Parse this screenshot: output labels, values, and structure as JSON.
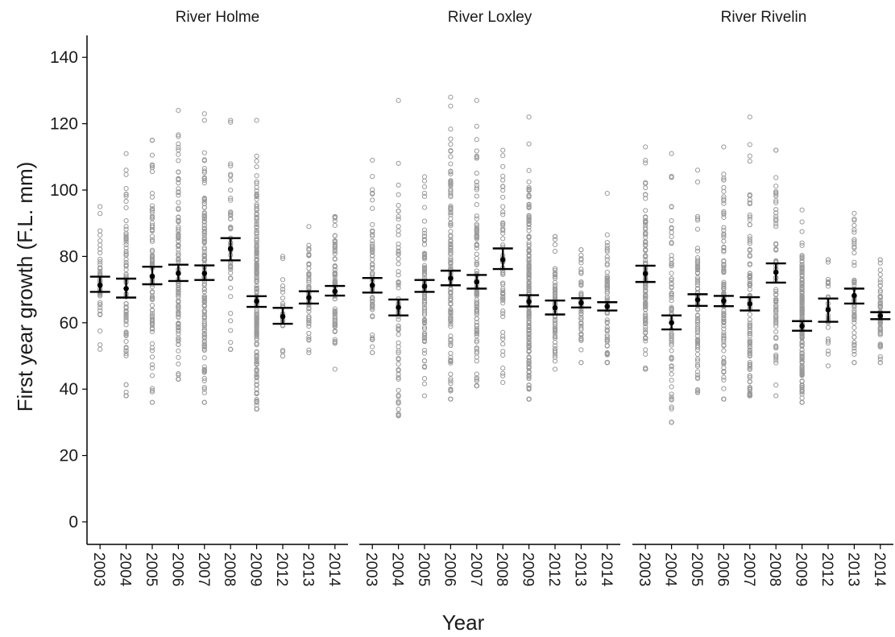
{
  "chart_data": {
    "type": "scatter",
    "xlabel": "Year",
    "ylabel": "First year growth (F.L. mm)",
    "ylim": [
      -6,
      146
    ],
    "yticks": [
      0,
      20,
      40,
      60,
      80,
      100,
      120,
      140
    ],
    "grid": false,
    "categories": [
      "2003",
      "2004",
      "2005",
      "2006",
      "2007",
      "2008",
      "2009",
      "2012",
      "2013",
      "2014"
    ],
    "facets": [
      {
        "title": "River Holme",
        "summary": [
          {
            "year": "2003",
            "mean": 71.3,
            "lower": 69.3,
            "upper": 73.9
          },
          {
            "year": "2004",
            "mean": 70.3,
            "lower": 67.6,
            "upper": 73.3
          },
          {
            "year": "2005",
            "mean": 74.0,
            "lower": 71.6,
            "upper": 76.9
          },
          {
            "year": "2006",
            "mean": 74.9,
            "lower": 72.6,
            "upper": 77.5
          },
          {
            "year": "2007",
            "mean": 74.9,
            "lower": 72.9,
            "upper": 77.3
          },
          {
            "year": "2008",
            "mean": 82.3,
            "lower": 78.8,
            "upper": 85.5
          },
          {
            "year": "2009",
            "mean": 66.5,
            "lower": 64.8,
            "upper": 68.0
          },
          {
            "year": "2012",
            "mean": 61.9,
            "lower": 59.7,
            "upper": 64.5
          },
          {
            "year": "2013",
            "mean": 67.6,
            "lower": 65.8,
            "upper": 69.5
          },
          {
            "year": "2014",
            "mean": 69.5,
            "lower": 68.2,
            "upper": 71.1
          }
        ],
        "ranges": [
          {
            "year": "2003",
            "min": 52,
            "max": 95,
            "n": 45
          },
          {
            "year": "2004",
            "min": 38,
            "max": 111,
            "n": 80
          },
          {
            "year": "2005",
            "min": 36,
            "max": 115,
            "n": 90
          },
          {
            "year": "2006",
            "min": 43,
            "max": 124,
            "n": 120
          },
          {
            "year": "2007",
            "min": 36,
            "max": 123,
            "n": 130
          },
          {
            "year": "2008",
            "min": 52,
            "max": 121,
            "n": 50
          },
          {
            "year": "2009",
            "min": 34,
            "max": 121,
            "n": 200
          },
          {
            "year": "2012",
            "min": 50,
            "max": 80,
            "n": 25
          },
          {
            "year": "2013",
            "min": 51,
            "max": 89,
            "n": 55
          },
          {
            "year": "2014",
            "min": 46,
            "max": 92,
            "n": 80
          }
        ]
      },
      {
        "title": "River Loxley",
        "summary": [
          {
            "year": "2003",
            "mean": 71.3,
            "lower": 69.1,
            "upper": 73.5
          },
          {
            "year": "2004",
            "mean": 64.6,
            "lower": 62.2,
            "upper": 67.0
          },
          {
            "year": "2005",
            "mean": 71.0,
            "lower": 69.3,
            "upper": 72.9
          },
          {
            "year": "2006",
            "mean": 73.4,
            "lower": 71.3,
            "upper": 75.7
          },
          {
            "year": "2007",
            "mean": 72.3,
            "lower": 70.3,
            "upper": 74.4
          },
          {
            "year": "2008",
            "mean": 79.0,
            "lower": 76.2,
            "upper": 82.4
          },
          {
            "year": "2009",
            "mean": 66.4,
            "lower": 64.9,
            "upper": 68.3
          },
          {
            "year": "2012",
            "mean": 64.5,
            "lower": 62.5,
            "upper": 66.7
          },
          {
            "year": "2013",
            "mean": 66.0,
            "lower": 64.6,
            "upper": 67.4
          },
          {
            "year": "2014",
            "mean": 64.9,
            "lower": 63.7,
            "upper": 66.2
          }
        ],
        "ranges": [
          {
            "year": "2003",
            "min": 51,
            "max": 109,
            "n": 60
          },
          {
            "year": "2004",
            "min": 32,
            "max": 127,
            "n": 70
          },
          {
            "year": "2005",
            "min": 38,
            "max": 104,
            "n": 90
          },
          {
            "year": "2006",
            "min": 37,
            "max": 128,
            "n": 130
          },
          {
            "year": "2007",
            "min": 41,
            "max": 127,
            "n": 110
          },
          {
            "year": "2008",
            "min": 42,
            "max": 112,
            "n": 55
          },
          {
            "year": "2009",
            "min": 37,
            "max": 122,
            "n": 200
          },
          {
            "year": "2012",
            "min": 46,
            "max": 86,
            "n": 70
          },
          {
            "year": "2013",
            "min": 48,
            "max": 82,
            "n": 50
          },
          {
            "year": "2014",
            "min": 48,
            "max": 99,
            "n": 70
          }
        ]
      },
      {
        "title": "River Rivelin",
        "summary": [
          {
            "year": "2003",
            "mean": 74.8,
            "lower": 72.3,
            "upper": 77.2
          },
          {
            "year": "2004",
            "mean": 60.0,
            "lower": 58.0,
            "upper": 62.2
          },
          {
            "year": "2005",
            "mean": 66.9,
            "lower": 65.1,
            "upper": 68.6
          },
          {
            "year": "2006",
            "mean": 66.6,
            "lower": 65.0,
            "upper": 68.1
          },
          {
            "year": "2007",
            "mean": 65.7,
            "lower": 63.7,
            "upper": 67.7
          },
          {
            "year": "2008",
            "mean": 75.2,
            "lower": 72.1,
            "upper": 77.9
          },
          {
            "year": "2009",
            "mean": 59.0,
            "lower": 57.6,
            "upper": 60.5
          },
          {
            "year": "2012",
            "mean": 63.9,
            "lower": 60.3,
            "upper": 67.3
          },
          {
            "year": "2013",
            "mean": 68.2,
            "lower": 65.8,
            "upper": 70.3
          },
          {
            "year": "2014",
            "mean": 62.1,
            "lower": 61.1,
            "upper": 63.2
          }
        ],
        "ranges": [
          {
            "year": "2003",
            "min": 46,
            "max": 113,
            "n": 110
          },
          {
            "year": "2004",
            "min": 30,
            "max": 111,
            "n": 70
          },
          {
            "year": "2005",
            "min": 39,
            "max": 106,
            "n": 80
          },
          {
            "year": "2006",
            "min": 37,
            "max": 113,
            "n": 110
          },
          {
            "year": "2007",
            "min": 38,
            "max": 122,
            "n": 120
          },
          {
            "year": "2008",
            "min": 38,
            "max": 112,
            "n": 70
          },
          {
            "year": "2009",
            "min": 36,
            "max": 94,
            "n": 200
          },
          {
            "year": "2012",
            "min": 47,
            "max": 79,
            "n": 25
          },
          {
            "year": "2013",
            "min": 48,
            "max": 93,
            "n": 55
          },
          {
            "year": "2014",
            "min": 48,
            "max": 79,
            "n": 60
          }
        ]
      }
    ]
  }
}
